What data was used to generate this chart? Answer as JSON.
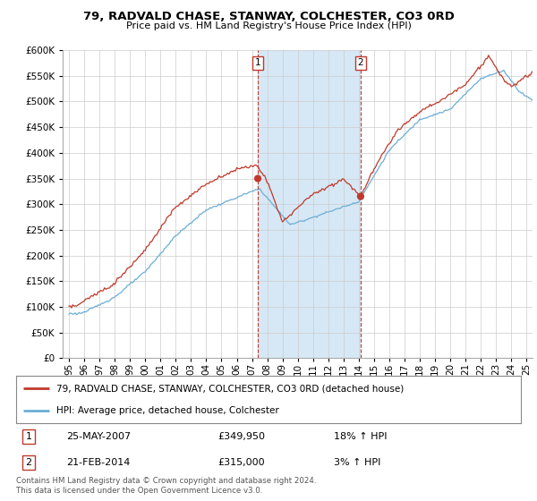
{
  "title": "79, RADVALD CHASE, STANWAY, COLCHESTER, CO3 0RD",
  "subtitle": "Price paid vs. HM Land Registry's House Price Index (HPI)",
  "legend_line1": "79, RADVALD CHASE, STANWAY, COLCHESTER, CO3 0RD (detached house)",
  "legend_line2": "HPI: Average price, detached house, Colchester",
  "sale1_date": "25-MAY-2007",
  "sale1_price": "£349,950",
  "sale1_hpi": "18% ↑ HPI",
  "sale2_date": "21-FEB-2014",
  "sale2_price": "£315,000",
  "sale2_hpi": "3% ↑ HPI",
  "footnote": "Contains HM Land Registry data © Crown copyright and database right 2024.\nThis data is licensed under the Open Government Licence v3.0.",
  "hpi_color": "#6baed6",
  "price_color": "#c0392b",
  "shade_color": "#d6e8f5",
  "sale1_x": 2007.38,
  "sale1_y": 349950,
  "sale2_x": 2014.12,
  "sale2_y": 315000,
  "ylim": [
    0,
    600000
  ],
  "xlim_start": 1994.6,
  "xlim_end": 2025.4,
  "background_color": "#ffffff"
}
